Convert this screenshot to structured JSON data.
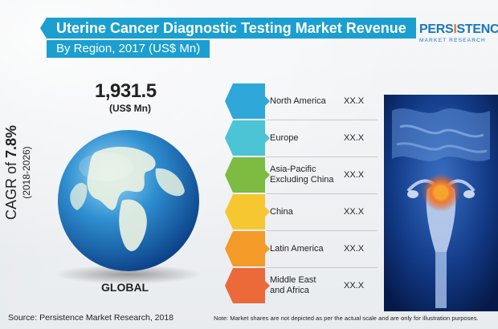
{
  "title": "Uterine Cancer Diagnostic Testing Market Revenue",
  "subtitle": "By Region, 2017 (US$ Mn)",
  "logo": {
    "top_part1": "PERS",
    "top_accent": "I",
    "top_part2": "STENCE",
    "bottom": "MARKET RESEARCH"
  },
  "total": {
    "value": "1,931.5",
    "unit": "(US$ Mn)"
  },
  "cagr": {
    "prefix": "CAGR of ",
    "value": "7.8%",
    "period": "(2018-2026)"
  },
  "globe_label": "GLOBAL",
  "source": "Source: Persistence Market Research, 2018",
  "note": "Note: Market shares are not depicted as per the actual scale and are only for illustration purposes.",
  "colors": {
    "banner": "#1a9fd0",
    "north_america": "#2fa7d9",
    "europe": "#4dc3d6",
    "asia_pacific": "#7dbb43",
    "china": "#f7c731",
    "latin_america": "#f39a28",
    "mea": "#ec6a3a"
  },
  "chart_data": {
    "type": "table",
    "title": "Uterine Cancer Diagnostic Testing Market Revenue",
    "subtitle": "By Region, 2017 (US$ Mn)",
    "total": "1,931.5",
    "regions": [
      {
        "name": "North America",
        "value": "XX.X",
        "color": "#2fa7d9"
      },
      {
        "name": "Europe",
        "value": "XX.X",
        "color": "#4dc3d6"
      },
      {
        "name": "Asia-Pacific\nExcluding China",
        "value": "XX.X",
        "color": "#7dbb43"
      },
      {
        "name": "China",
        "value": "XX.X",
        "color": "#f7c731"
      },
      {
        "name": "Latin America",
        "value": "XX.X",
        "color": "#f39a28"
      },
      {
        "name": "Middle East\nand Africa",
        "value": "XX.X",
        "color": "#ec6a3a"
      }
    ]
  }
}
